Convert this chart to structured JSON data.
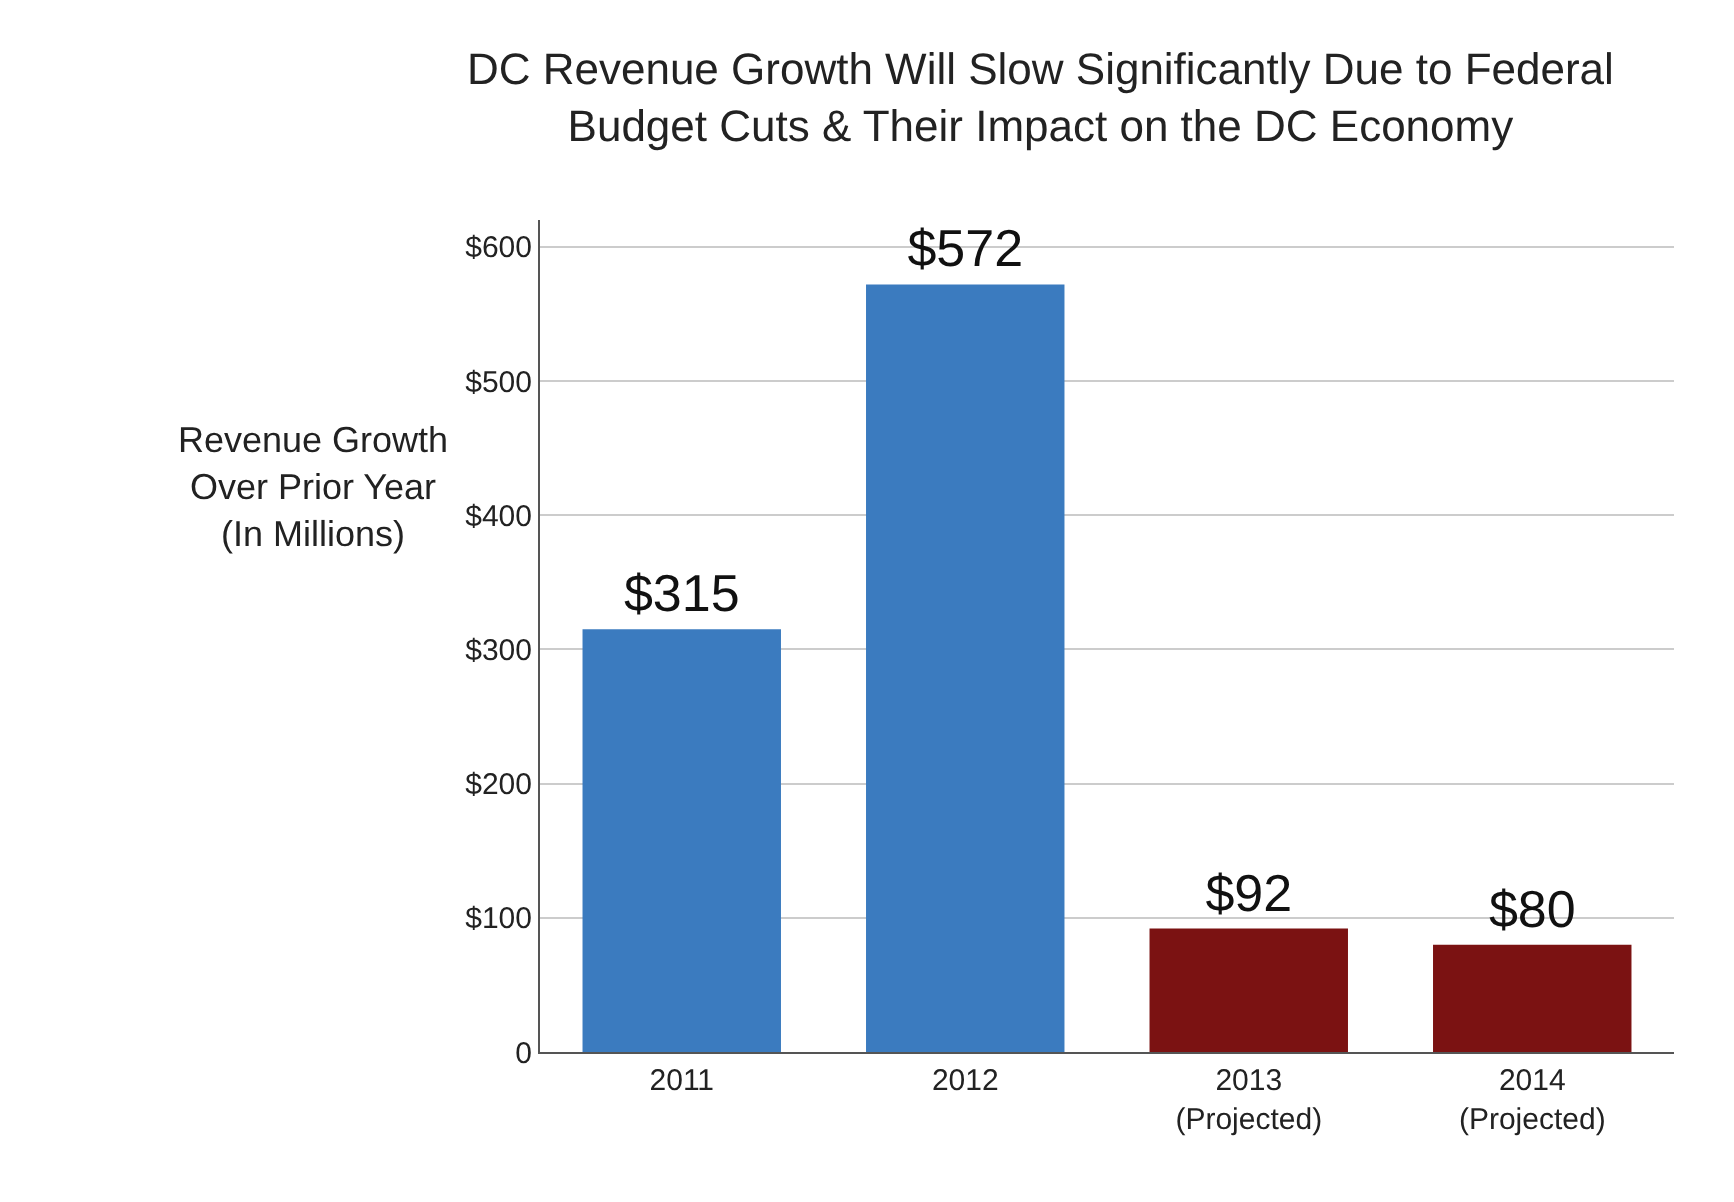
{
  "chart_data": {
    "type": "bar",
    "title": "DC Revenue Growth Will Slow Significantly Due to Federal\nBudget Cuts & Their Impact on the DC Economy",
    "ylabel": "Revenue Growth\nOver Prior Year\n(In Millions)",
    "categories": [
      "2011",
      "2012",
      "2013\n(Projected)",
      "2014\n(Projected)"
    ],
    "values": [
      315,
      572,
      92,
      80
    ],
    "colors": [
      "#3b7bbf",
      "#3b7bbf",
      "#7b1212",
      "#7b1212"
    ],
    "value_labels": [
      "$315",
      "$572",
      "$92",
      "$80"
    ],
    "ylim": [
      0,
      620
    ],
    "yticks": [
      0,
      {
        "value": 100,
        "label": "$100"
      },
      {
        "value": 200,
        "label": "$200"
      },
      {
        "value": 300,
        "label": "$300"
      },
      {
        "value": 400,
        "label": "$400"
      },
      {
        "value": 500,
        "label": "$500"
      },
      {
        "value": 600,
        "label": "$600"
      }
    ],
    "grid": "y"
  }
}
